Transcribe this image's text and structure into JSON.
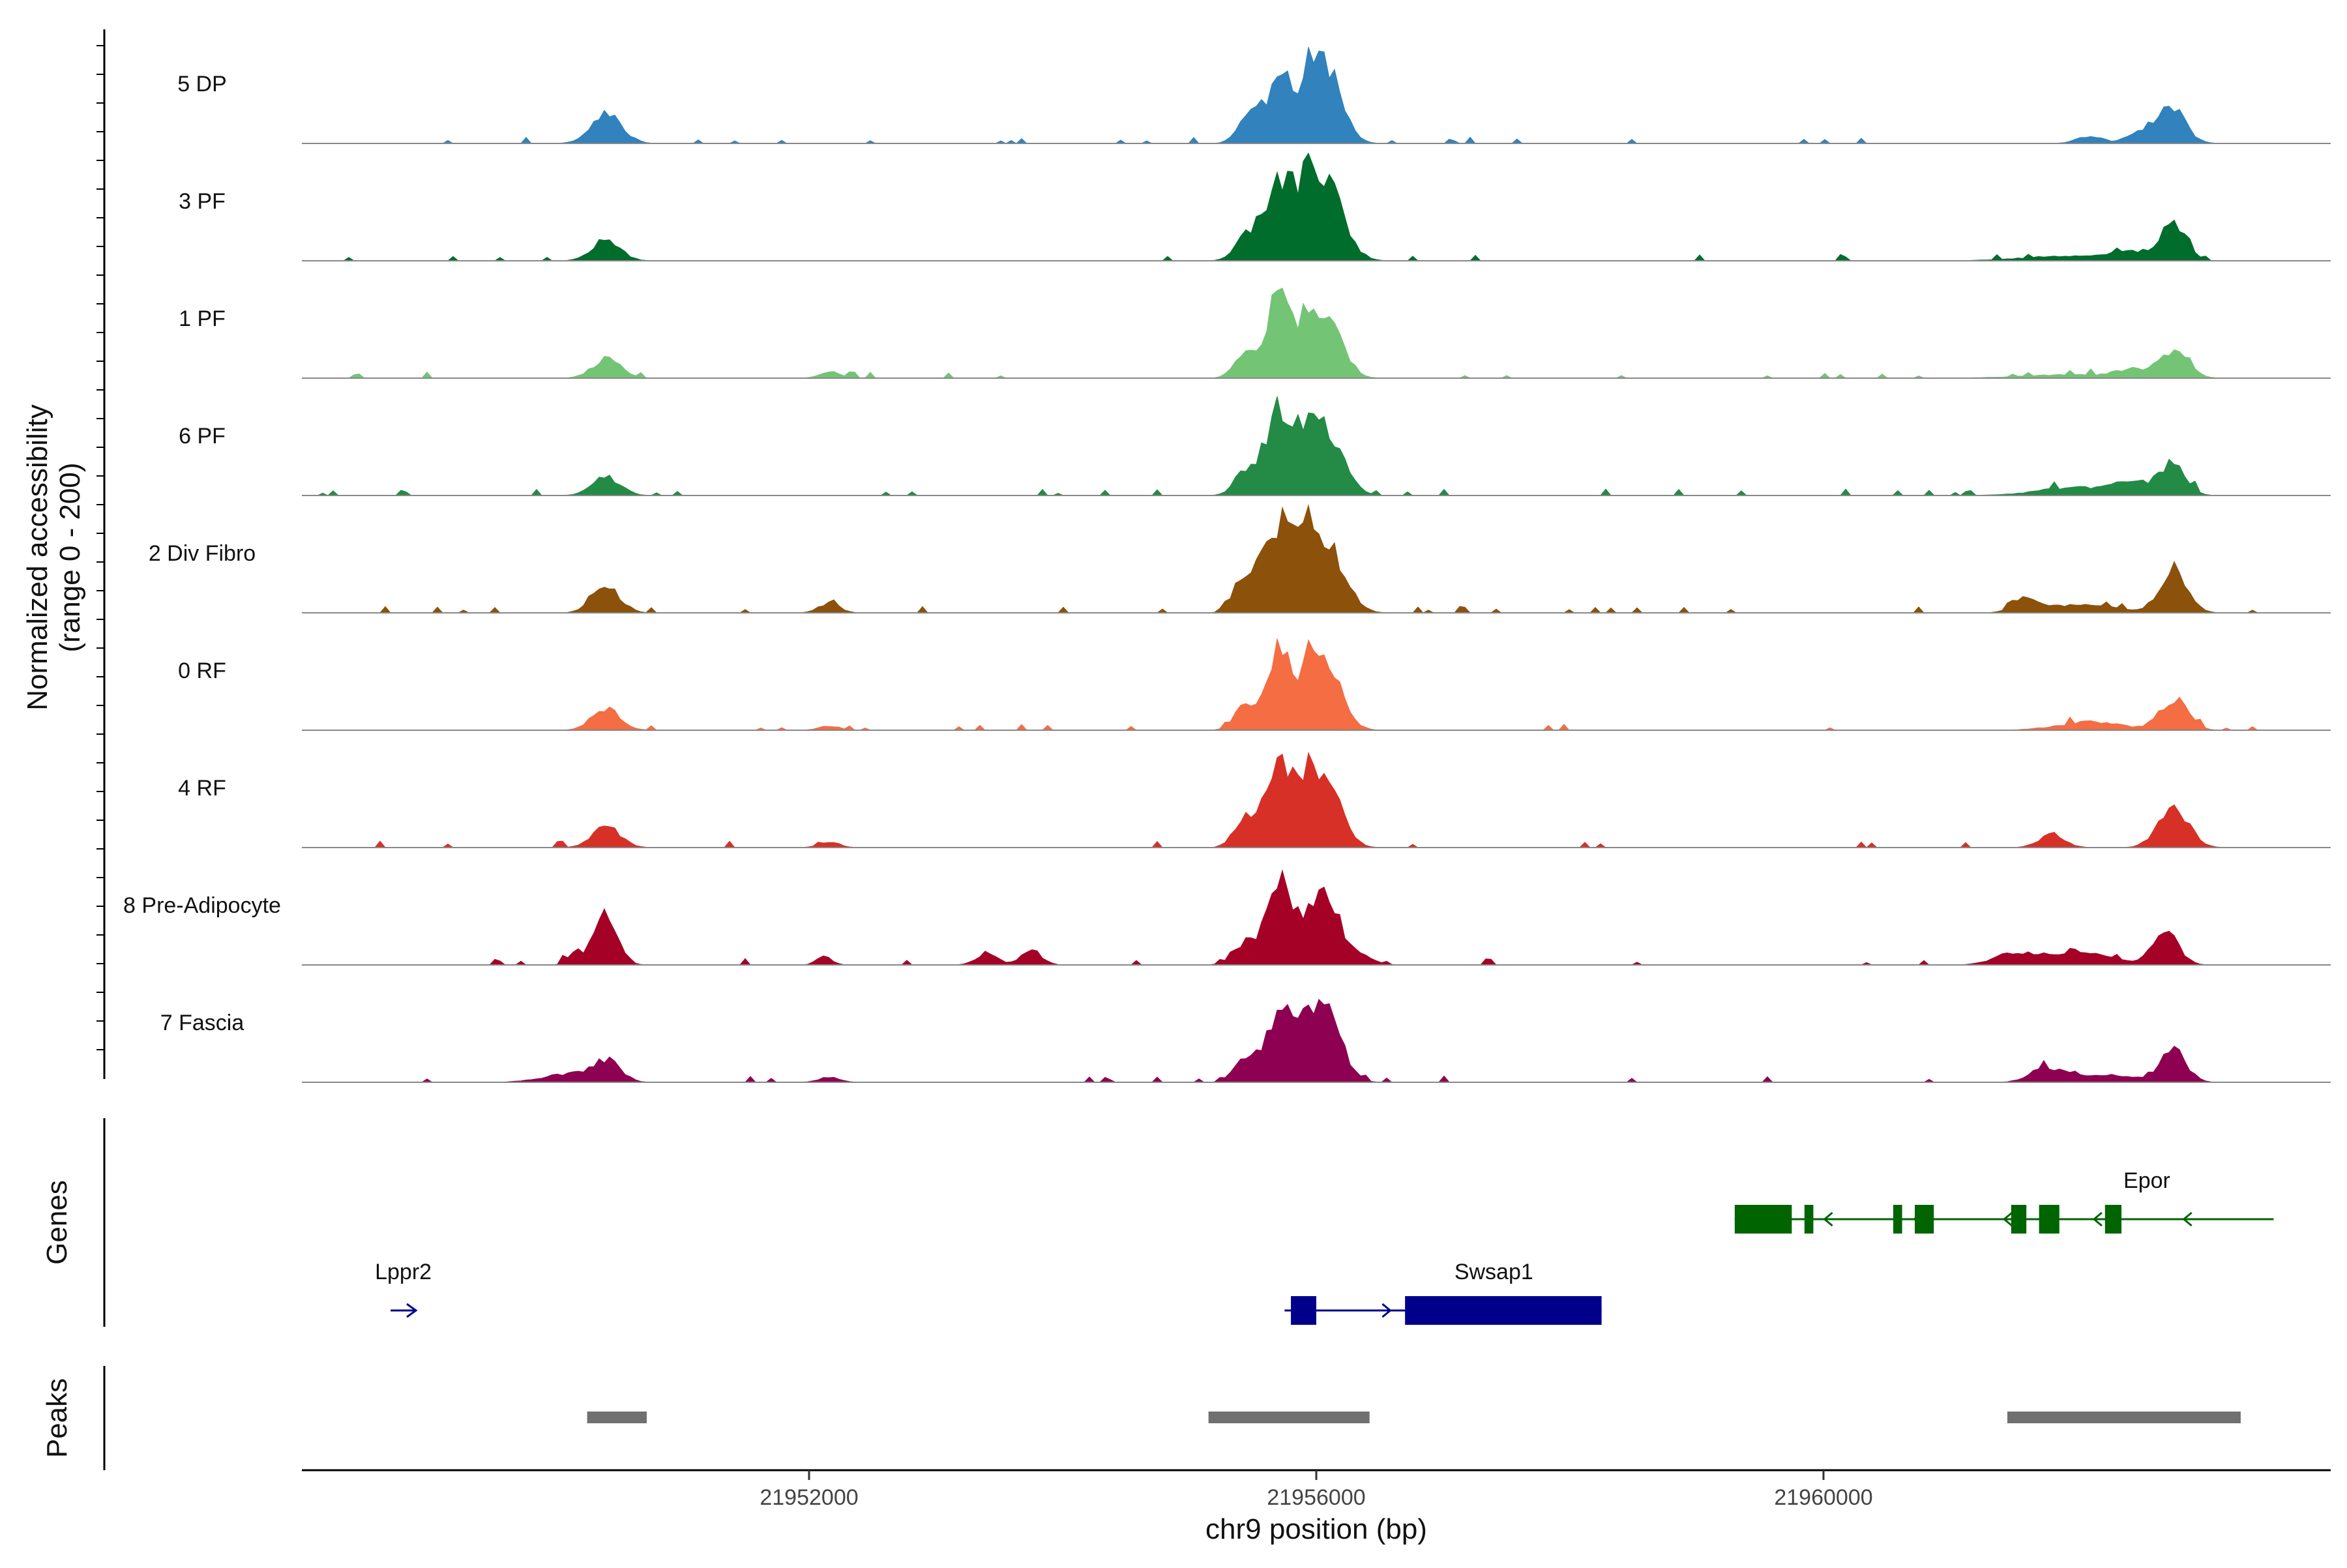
{
  "chart_data": {
    "type": "area",
    "region": {
      "chrom": "chr9",
      "start": 21948000,
      "end": 21964000
    },
    "y_axis": {
      "title_line1": "Normalized accessibility",
      "title_line2": "(range 0 - 200)",
      "ylim": [
        0,
        200
      ]
    },
    "x_axis": {
      "title": "chr9 position (bp)",
      "ticks": [
        21952000,
        21956000,
        21960000
      ],
      "tick_labels": [
        "21952000",
        "21956000",
        "21960000"
      ]
    },
    "series": [
      {
        "name": "5 DP",
        "color": "#3182BD",
        "peaks": [
          [
            21950400,
            55,
            120
          ],
          [
            21955450,
            40,
            80
          ],
          [
            21955720,
            115,
            130
          ],
          [
            21955950,
            55,
            50
          ],
          [
            21956080,
            142,
            120
          ],
          [
            21962100,
            14,
            100
          ],
          [
            21962450,
            18,
            80
          ],
          [
            21962650,
            20,
            80
          ],
          [
            21962750,
            60,
            110
          ]
        ]
      },
      {
        "name": "3 PF",
        "color": "#006D2C",
        "peaks": [
          [
            21950400,
            38,
            110
          ],
          [
            21955420,
            25,
            80
          ],
          [
            21955720,
            140,
            150
          ],
          [
            21955950,
            55,
            50
          ],
          [
            21956070,
            140,
            140
          ],
          [
            21961900,
            8,
            350
          ],
          [
            21962450,
            15,
            200
          ],
          [
            21962760,
            64,
            100
          ]
        ]
      },
      {
        "name": "1 PF",
        "color": "#74C476",
        "peaks": [
          [
            21950400,
            35,
            110
          ],
          [
            21952160,
            12,
            80
          ],
          [
            21955420,
            40,
            80
          ],
          [
            21955720,
            160,
            110
          ],
          [
            21955950,
            60,
            50
          ],
          [
            21956080,
            124,
            120
          ],
          [
            21961900,
            6,
            350
          ],
          [
            21962450,
            15,
            150
          ],
          [
            21962770,
            50,
            110
          ]
        ]
      },
      {
        "name": "6 PF",
        "color": "#238B45",
        "peaks": [
          [
            21950400,
            35,
            110
          ],
          [
            21955420,
            35,
            80
          ],
          [
            21955720,
            160,
            130
          ],
          [
            21955950,
            60,
            50
          ],
          [
            21956080,
            118,
            130
          ],
          [
            21962000,
            15,
            300
          ],
          [
            21962450,
            20,
            150
          ],
          [
            21962760,
            60,
            100
          ]
        ]
      },
      {
        "name": "2 Div Fibro",
        "color": "#8C510A",
        "peaks": [
          [
            21950400,
            46,
            110
          ],
          [
            21952160,
            18,
            80
          ],
          [
            21955420,
            55,
            80
          ],
          [
            21955720,
            162,
            140
          ],
          [
            21955950,
            60,
            50
          ],
          [
            21956080,
            122,
            140
          ],
          [
            21961600,
            28,
            100
          ],
          [
            21962050,
            16,
            250
          ],
          [
            21962760,
            80,
            110
          ]
        ]
      },
      {
        "name": "0 RF",
        "color": "#F46D43",
        "peaks": [
          [
            21950400,
            40,
            110
          ],
          [
            21952160,
            8,
            80
          ],
          [
            21955420,
            38,
            80
          ],
          [
            21955720,
            155,
            110
          ],
          [
            21955950,
            60,
            50
          ],
          [
            21956080,
            132,
            120
          ],
          [
            21962100,
            15,
            250
          ],
          [
            21962760,
            58,
            110
          ]
        ]
      },
      {
        "name": "4 RF",
        "color": "#D73027",
        "peaks": [
          [
            21950400,
            40,
            110
          ],
          [
            21952160,
            10,
            80
          ],
          [
            21955420,
            50,
            80
          ],
          [
            21955720,
            165,
            120
          ],
          [
            21955950,
            60,
            50
          ],
          [
            21956080,
            124,
            120
          ],
          [
            21961800,
            25,
            100
          ],
          [
            21962760,
            72,
            120
          ]
        ]
      },
      {
        "name": "8 Pre-Adipocyte",
        "color": "#A50026",
        "peaks": [
          [
            21950160,
            22,
            60
          ],
          [
            21950400,
            98,
            90
          ],
          [
            21952120,
            15,
            60
          ],
          [
            21953400,
            22,
            80
          ],
          [
            21953750,
            28,
            80
          ],
          [
            21955450,
            40,
            100
          ],
          [
            21955720,
            160,
            100
          ],
          [
            21955950,
            55,
            60
          ],
          [
            21956080,
            118,
            100
          ],
          [
            21956300,
            20,
            120
          ],
          [
            21961500,
            20,
            150
          ],
          [
            21962000,
            25,
            250
          ],
          [
            21962700,
            60,
            100
          ]
        ]
      },
      {
        "name": "7 Fascia",
        "color": "#8E0152",
        "peaks": [
          [
            21950100,
            15,
            200
          ],
          [
            21950400,
            38,
            110
          ],
          [
            21952160,
            10,
            80
          ],
          [
            21955420,
            40,
            80
          ],
          [
            21955720,
            135,
            120
          ],
          [
            21955950,
            60,
            50
          ],
          [
            21956080,
            128,
            120
          ],
          [
            21961750,
            26,
            120
          ],
          [
            21962200,
            15,
            250
          ],
          [
            21962760,
            58,
            100
          ]
        ]
      }
    ],
    "genes": [
      {
        "name": "Lppr2",
        "strand": "+",
        "color": "#00008B",
        "start": 21948700,
        "end": 21948900,
        "exons": []
      },
      {
        "name": "Swsap1",
        "strand": "+",
        "color": "#00008B",
        "start": 21955750,
        "end": 21958250,
        "exons": [
          [
            21955800,
            21956000
          ],
          [
            21956700,
            21958250
          ]
        ]
      },
      {
        "name": "Epor",
        "strand": "-",
        "color": "#006400",
        "start": 21959300,
        "end": 21963550,
        "exons": [
          [
            21959300,
            21959750
          ],
          [
            21959850,
            21959920
          ],
          [
            21960550,
            21960620
          ],
          [
            21960720,
            21960870
          ],
          [
            21961480,
            21961600
          ],
          [
            21961700,
            21961860
          ],
          [
            21962220,
            21962350
          ]
        ]
      }
    ],
    "peaks_track": [
      [
        21950250,
        21950720
      ],
      [
        21955150,
        21956420
      ],
      [
        21961450,
        21963290
      ]
    ],
    "panel_titles": {
      "genes": "Genes",
      "peaks": "Peaks"
    }
  }
}
